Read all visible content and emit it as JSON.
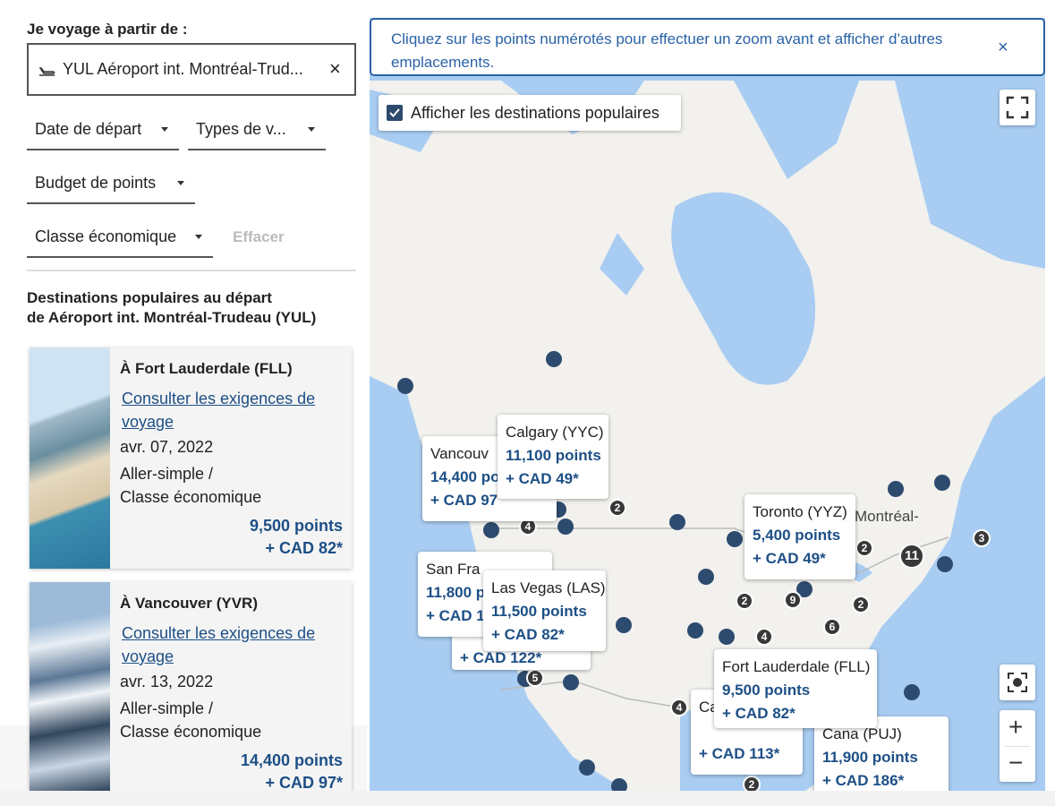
{
  "search": {
    "label": "Je voyage à partir de :",
    "origin": "YUL Aéroport int. Montréal-Trud...",
    "clear": "×"
  },
  "filters": {
    "departure_date": "Date de départ",
    "trip_types": "Types de v...",
    "points_budget": "Budget de points",
    "cabin": "Classe économique",
    "reset": "Effacer"
  },
  "destinations": {
    "heading_line1": "Destinations populaires au départ",
    "heading_line2": "de Aéroport int. Montréal-Trudeau (YUL)",
    "cards": [
      {
        "title": "À Fort Lauderdale (FLL)",
        "link": "Consulter les exigences de voyage",
        "date": "avr. 07, 2022",
        "trip": "Aller-simple /",
        "cabin": "Classe économique",
        "points": "9,500 points",
        "price": "+ CAD 82*"
      },
      {
        "title": "À Vancouver (YVR)",
        "link": "Consulter les exigences de voyage",
        "date": "avr. 13, 2022",
        "trip": "Aller-simple /",
        "cabin": "Classe économique",
        "points": "14,400 points",
        "price": "+ CAD 97*"
      }
    ]
  },
  "map": {
    "banner": {
      "text": "Cliquez sur les points numérotés pour effectuer un zoom avant et afficher d’autres emplacements.",
      "close": "×"
    },
    "toggle": "Afficher les destinations populaires",
    "city_label": "Montréal-",
    "popups": [
      {
        "name": "Vancouv",
        "points": "14,400 po",
        "price": "+ CAD 97"
      },
      {
        "name": "Calgary (YYC)",
        "points": "11,100 points",
        "price": "+ CAD 49*"
      },
      {
        "price": "+ CAD 122*"
      },
      {
        "name": "San Fra",
        "points": "11,800 p",
        "price": "+ CAD 1"
      },
      {
        "name": "Las Vegas (LAS)",
        "points": "11,500 points",
        "price": "+ CAD 82*"
      },
      {
        "name": "Toronto (YYZ)",
        "points": "5,400 points",
        "price": "+ CAD 49*"
      },
      {
        "name": "Ca",
        "price": "+ CAD 113*"
      },
      {
        "name": "Cana (PUJ)",
        "points": "11,900 points",
        "price": "+ CAD 186*"
      },
      {
        "name": "Fort Lauderdale (FLL)",
        "points": "9,500 points",
        "price": "+ CAD 82*"
      }
    ],
    "clusters": [
      2,
      4,
      2,
      11,
      3,
      2,
      9,
      2,
      6,
      4,
      5,
      4,
      2
    ],
    "zoom_in": "+",
    "zoom_out": "−"
  }
}
